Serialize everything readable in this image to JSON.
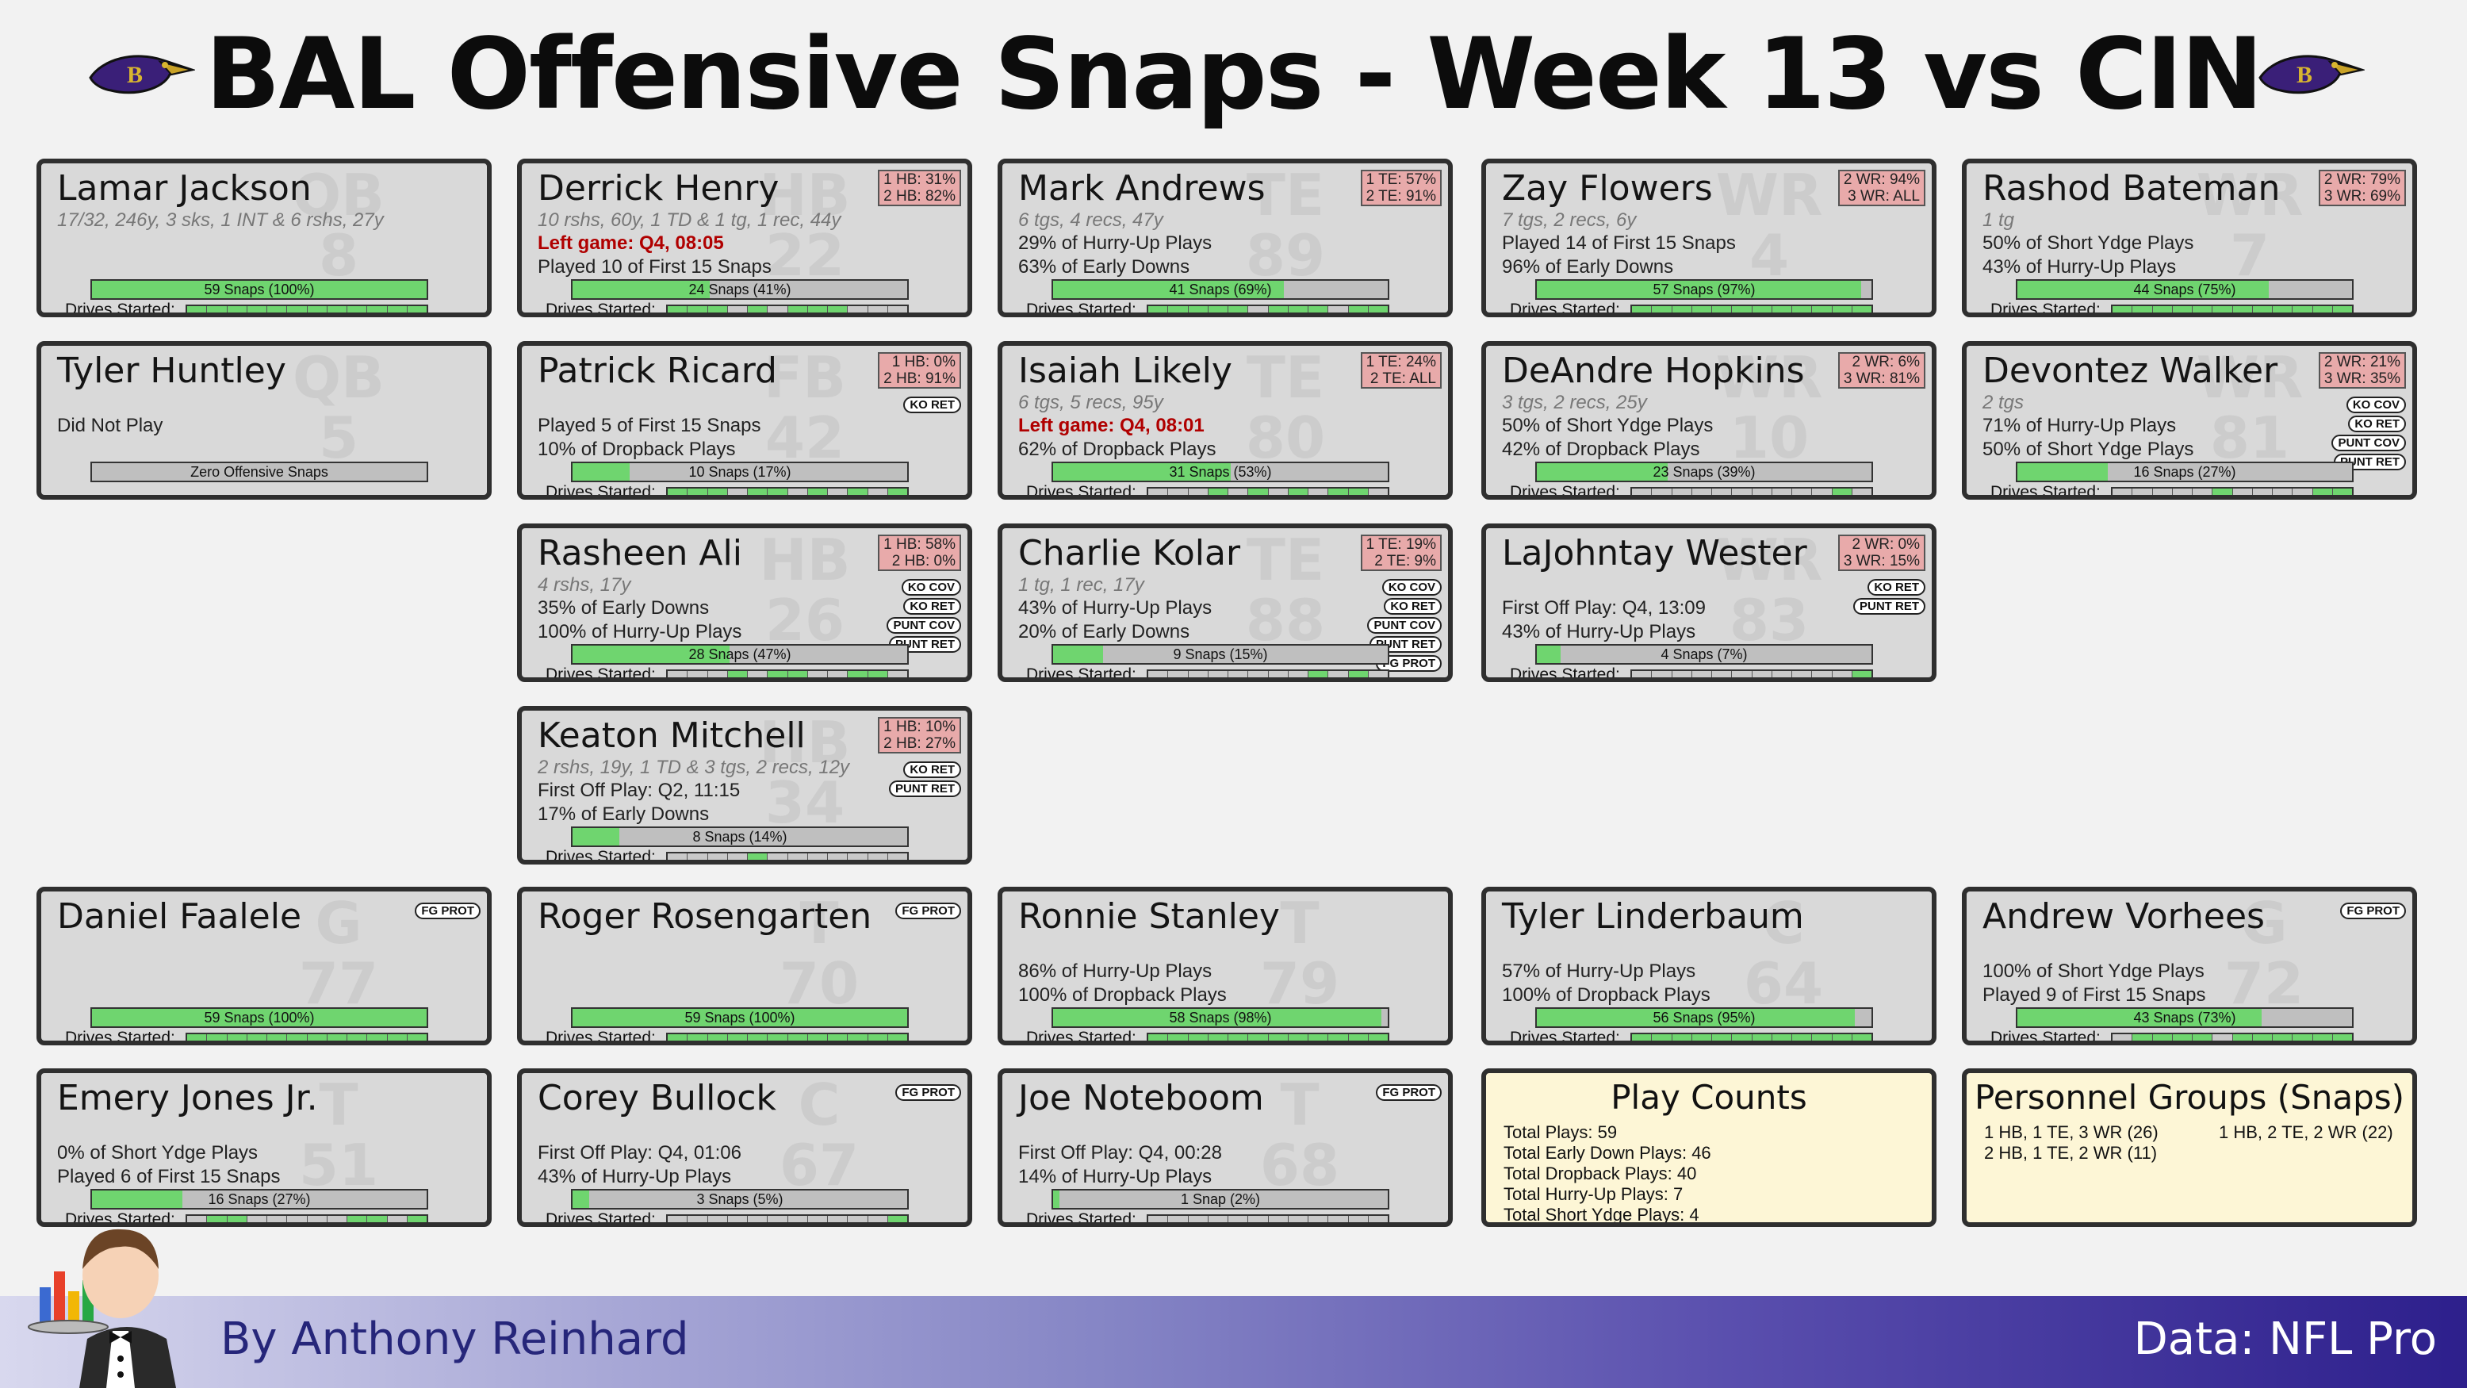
{
  "title": "BAL Offensive Snaps - Week 13 vs CIN",
  "drives_label": "Drives Started:",
  "colors": {
    "snap_fill": "#6fd56f",
    "card_bg": "#d9d9d9",
    "pct_box": "#e8aaaa",
    "left_game": "#b00000",
    "summary_bg": "#fdf6d6"
  },
  "players": [
    {
      "name": "Lamar Jackson",
      "pos": "QB",
      "num": "8",
      "stats": "17/32, 246y, 3 sks, 1 INT & 6 rshs, 27y",
      "lines": [
        "",
        ""
      ],
      "snaps": "59 Snaps (100%)",
      "snap_frac": 1.0,
      "drives": [
        1,
        1,
        1,
        1,
        1,
        1,
        1,
        1,
        1,
        1,
        1,
        1
      ]
    },
    {
      "name": "Derrick Henry",
      "pos": "HB",
      "num": "22",
      "stats": "10 rshs, 60y, 1 TD & 1 tg, 1 rec, 44y",
      "pct": "1 HB: 31%\n2 HB: 82%",
      "left_game": "Left game: Q4, 08:05",
      "lines": [
        "Played 10 of First 15 Snaps",
        ""
      ],
      "snaps": "24 Snaps (41%)",
      "snap_frac": 0.41,
      "drives": [
        1,
        1,
        1,
        0,
        1,
        0,
        1,
        1,
        1,
        0,
        0,
        0
      ]
    },
    {
      "name": "Mark Andrews",
      "pos": "TE",
      "num": "89",
      "stats": "6 tgs, 4 recs, 47y",
      "pct": "1 TE: 57%\n2 TE: 91%",
      "lines": [
        "29% of Hurry-Up Plays",
        "63% of Early Downs"
      ],
      "snaps": "41 Snaps (69%)",
      "snap_frac": 0.69,
      "drives": [
        1,
        1,
        1,
        1,
        1,
        0,
        1,
        1,
        1,
        0,
        1,
        1
      ]
    },
    {
      "name": "Zay Flowers",
      "pos": "WR",
      "num": "4",
      "stats": "7 tgs, 2 recs, 6y",
      "pct": "2 WR: 94%\n3 WR: ALL",
      "lines": [
        "Played 14 of First 15 Snaps",
        "96% of Early Downs"
      ],
      "snaps": "57 Snaps (97%)",
      "snap_frac": 0.97,
      "drives": [
        1,
        1,
        1,
        1,
        1,
        1,
        1,
        1,
        1,
        1,
        1,
        1
      ]
    },
    {
      "name": "Rashod Bateman",
      "pos": "WR",
      "num": "7",
      "stats": "1 tg",
      "pct": "2 WR: 79%\n3 WR: 69%",
      "lines": [
        "50% of Short Ydge Plays",
        "43% of Hurry-Up Plays"
      ],
      "snaps": "44 Snaps (75%)",
      "snap_frac": 0.75,
      "drives": [
        1,
        1,
        1,
        1,
        1,
        1,
        1,
        1,
        1,
        1,
        1,
        1
      ]
    },
    {
      "name": "Tyler Huntley",
      "pos": "QB",
      "num": "5",
      "stats": "",
      "lines": [
        "Did Not Play",
        ""
      ],
      "zero": "Zero Offensive Snaps"
    },
    {
      "name": "Patrick Ricard",
      "pos": "FB",
      "num": "42",
      "stats": "",
      "pct": "1 HB:  0%\n2 HB: 91%",
      "badges": [
        "KO RET"
      ],
      "lines": [
        "Played 5 of First 15 Snaps",
        "10% of Dropback Plays"
      ],
      "snaps": "10 Snaps (17%)",
      "snap_frac": 0.17,
      "drives": [
        1,
        1,
        1,
        0,
        1,
        1,
        0,
        1,
        0,
        1,
        0,
        1
      ]
    },
    {
      "name": "Isaiah Likely",
      "pos": "TE",
      "num": "80",
      "stats": "6 tgs, 5 recs, 95y",
      "pct": "1 TE: 24%\n2 TE: ALL",
      "left_game": "Left game: Q4, 08:01",
      "lines": [
        "62% of Dropback Plays",
        ""
      ],
      "snaps": "31 Snaps (53%)",
      "snap_frac": 0.53,
      "drives": [
        0,
        0,
        0,
        1,
        0,
        1,
        0,
        1,
        0,
        1,
        1,
        0
      ]
    },
    {
      "name": "DeAndre Hopkins",
      "pos": "WR",
      "num": "10",
      "stats": "3 tgs, 2 recs, 25y",
      "pct": "2 WR:  6%\n3 WR: 81%",
      "lines": [
        "50% of Short Ydge Plays",
        "42% of Dropback Plays"
      ],
      "snaps": "23 Snaps (39%)",
      "snap_frac": 0.39,
      "drives": [
        0,
        0,
        0,
        0,
        0,
        0,
        0,
        0,
        0,
        0,
        1,
        0
      ]
    },
    {
      "name": "Devontez Walker",
      "pos": "WR",
      "num": "81",
      "stats": "2 tgs",
      "pct": "2 WR: 21%\n3 WR: 35%",
      "badges": [
        "KO COV",
        "KO RET",
        "PUNT COV",
        "PUNT RET"
      ],
      "lines": [
        "71% of Hurry-Up Plays",
        "50% of Short Ydge Plays"
      ],
      "snaps": "16 Snaps (27%)",
      "snap_frac": 0.27,
      "drives": [
        0,
        0,
        0,
        0,
        0,
        1,
        0,
        0,
        0,
        0,
        1,
        1
      ]
    },
    {
      "name": "Rasheen Ali",
      "pos": "HB",
      "num": "26",
      "stats": "4 rshs, 17y",
      "pct": "1 HB: 58%\n2 HB:  0%",
      "badges": [
        "KO COV",
        "KO RET",
        "PUNT COV",
        "PUNT RET"
      ],
      "lines": [
        "35% of Early Downs",
        "100% of Hurry-Up Plays"
      ],
      "snaps": "28 Snaps (47%)",
      "snap_frac": 0.47,
      "drives": [
        0,
        0,
        0,
        1,
        0,
        1,
        1,
        0,
        0,
        1,
        1,
        0
      ]
    },
    {
      "name": "Charlie Kolar",
      "pos": "TE",
      "num": "88",
      "stats": "1 tg, 1 rec, 17y",
      "pct": "1 TE: 19%\n2 TE:  9%",
      "badges": [
        "KO COV",
        "KO RET",
        "PUNT COV",
        "PUNT RET",
        "FG PROT"
      ],
      "lines": [
        "43% of Hurry-Up Plays",
        "20% of Early Downs"
      ],
      "snaps": "9 Snaps (15%)",
      "snap_frac": 0.15,
      "drives": [
        0,
        0,
        0,
        0,
        0,
        0,
        0,
        0,
        1,
        0,
        1,
        0
      ]
    },
    {
      "name": "LaJohntay Wester",
      "pos": "WR",
      "num": "83",
      "stats": "",
      "pct": "2 WR:  0%\n3 WR: 15%",
      "badges": [
        "KO RET",
        "PUNT RET"
      ],
      "lines": [
        "First Off Play: Q4, 13:09",
        "43% of Hurry-Up Plays"
      ],
      "snaps": "4 Snaps (7%)",
      "snap_frac": 0.07,
      "drives": [
        0,
        0,
        0,
        0,
        0,
        0,
        0,
        0,
        0,
        0,
        0,
        1
      ]
    },
    {
      "name": "Keaton Mitchell",
      "pos": "HB",
      "num": "34",
      "stats": "2 rshs, 19y, 1 TD & 3 tgs, 2 recs, 12y",
      "pct": "1 HB: 10%\n2 HB: 27%",
      "badges": [
        "KO RET",
        "PUNT RET"
      ],
      "lines": [
        "First Off Play: Q2, 11:15",
        "17% of Early Downs"
      ],
      "snaps": "8 Snaps (14%)",
      "snap_frac": 0.14,
      "drives": [
        0,
        0,
        0,
        0,
        1,
        0,
        0,
        0,
        0,
        0,
        0,
        0
      ]
    },
    {
      "name": "Daniel Faalele",
      "pos": "G",
      "num": "77",
      "stats": "",
      "badges": [
        "FG PROT"
      ],
      "lines": [
        "",
        ""
      ],
      "snaps": "59 Snaps (100%)",
      "snap_frac": 1.0,
      "drives": [
        1,
        1,
        1,
        1,
        1,
        1,
        1,
        1,
        1,
        1,
        1,
        1
      ]
    },
    {
      "name": "Roger Rosengarten",
      "pos": "T",
      "num": "70",
      "stats": "",
      "badges": [
        "FG PROT"
      ],
      "lines": [
        "",
        ""
      ],
      "snaps": "59 Snaps (100%)",
      "snap_frac": 1.0,
      "drives": [
        1,
        1,
        1,
        1,
        1,
        1,
        1,
        1,
        1,
        1,
        1,
        1
      ]
    },
    {
      "name": "Ronnie Stanley",
      "pos": "T",
      "num": "79",
      "stats": "",
      "lines": [
        "86% of Hurry-Up Plays",
        "100% of Dropback Plays"
      ],
      "snaps": "58 Snaps (98%)",
      "snap_frac": 0.98,
      "drives": [
        1,
        1,
        1,
        1,
        1,
        1,
        1,
        1,
        1,
        1,
        1,
        1
      ]
    },
    {
      "name": "Tyler Linderbaum",
      "pos": "C",
      "num": "64",
      "stats": "",
      "lines": [
        "57% of Hurry-Up Plays",
        "100% of Dropback Plays"
      ],
      "snaps": "56 Snaps (95%)",
      "snap_frac": 0.95,
      "drives": [
        1,
        1,
        1,
        1,
        1,
        1,
        1,
        1,
        1,
        1,
        1,
        1
      ]
    },
    {
      "name": "Andrew Vorhees",
      "pos": "G",
      "num": "72",
      "stats": "",
      "badges": [
        "FG PROT"
      ],
      "lines": [
        "100% of Short Ydge Plays",
        "Played 9 of First 15 Snaps"
      ],
      "snaps": "43 Snaps (73%)",
      "snap_frac": 0.73,
      "drives": [
        0,
        1,
        1,
        1,
        1,
        0,
        1,
        1,
        1,
        1,
        1,
        1
      ]
    },
    {
      "name": "Emery Jones Jr.",
      "pos": "T",
      "num": "51",
      "stats": "",
      "lines": [
        "0% of Short Ydge Plays",
        "Played 6 of First 15 Snaps"
      ],
      "snaps": "16 Snaps (27%)",
      "snap_frac": 0.27,
      "drives": [
        0,
        1,
        1,
        0,
        0,
        0,
        0,
        0,
        1,
        1,
        0,
        1
      ]
    },
    {
      "name": "Corey Bullock",
      "pos": "C",
      "num": "67",
      "stats": "",
      "badges": [
        "FG PROT"
      ],
      "lines": [
        "First Off Play: Q4, 01:06",
        "43% of Hurry-Up Plays"
      ],
      "snaps": "3 Snaps (5%)",
      "snap_frac": 0.05,
      "drives": [
        0,
        0,
        0,
        0,
        0,
        0,
        0,
        0,
        0,
        0,
        0,
        1
      ]
    },
    {
      "name": "Joe Noteboom",
      "pos": "T",
      "num": "68",
      "stats": "",
      "badges": [
        "FG PROT"
      ],
      "lines": [
        "First Off Play: Q4, 00:28",
        "14% of Hurry-Up Plays"
      ],
      "snaps": "1 Snap (2%)",
      "snap_frac": 0.02,
      "drives": [
        0,
        0,
        0,
        0,
        0,
        0,
        0,
        0,
        0,
        0,
        0,
        0
      ]
    }
  ],
  "play_counts": {
    "title": "Play Counts",
    "lines": [
      "Total Plays: 59",
      "Total Early Down Plays: 46",
      "Total Dropback Plays: 40",
      "Total Hurry-Up Plays: 7",
      "Total Short Ydge Plays: 4"
    ]
  },
  "personnel": {
    "title": "Personnel Groups (Snaps)",
    "col1": [
      "1 HB, 1 TE, 3 WR (26)",
      "2 HB, 1 TE, 2 WR (11)"
    ],
    "col2": [
      "1 HB, 2 TE, 2 WR (22)"
    ]
  },
  "footer": {
    "byline": "By Anthony Reinhard",
    "source": "Data: NFL Pro"
  }
}
